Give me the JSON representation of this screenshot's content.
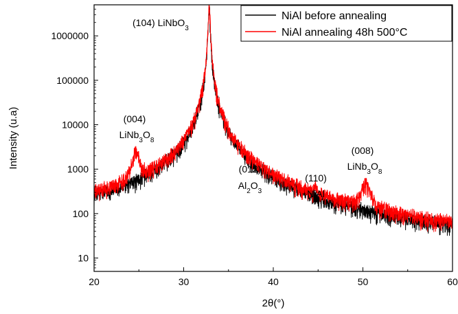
{
  "chart_data": {
    "type": "line",
    "title": "",
    "xlabel": "2θ(°)",
    "ylabel": "Intensity (u.a)",
    "xlim": [
      20,
      60
    ],
    "ylim": [
      5,
      5000000
    ],
    "yscale": "log",
    "grid": false,
    "legend_position": "top-right",
    "x_ticks": [
      20,
      30,
      40,
      50,
      60
    ],
    "x_tick_labels": [
      "20",
      "30",
      "40",
      "50",
      "60"
    ],
    "y_ticks": [
      10,
      100,
      1000,
      10000,
      100000,
      1000000
    ],
    "y_tick_labels": [
      "10",
      "100",
      "1000",
      "10000",
      "100000",
      "1000000"
    ],
    "series": [
      {
        "name": "NiAl before annealing",
        "color": "#000000",
        "baseline": [
          [
            20,
            75
          ],
          [
            24,
            55
          ],
          [
            28,
            50
          ],
          [
            31,
            58
          ],
          [
            32,
            120
          ],
          [
            33,
            1500
          ],
          [
            34,
            80
          ],
          [
            36,
            32
          ],
          [
            40,
            25
          ],
          [
            44,
            15
          ],
          [
            46,
            11
          ],
          [
            50,
            11
          ],
          [
            55,
            10
          ],
          [
            60,
            11
          ]
        ],
        "peaks": [
          {
            "center": 32.85,
            "height": 4000000,
            "width": 0.09
          }
        ]
      },
      {
        "name": "NiAl annealing 48h 500°C",
        "color": "#ff0000",
        "baseline": [
          [
            20,
            75
          ],
          [
            24,
            62
          ],
          [
            28,
            60
          ],
          [
            31,
            75
          ],
          [
            32,
            120
          ],
          [
            33,
            1500
          ],
          [
            34,
            90
          ],
          [
            35,
            45
          ],
          [
            36,
            42
          ],
          [
            39,
            40
          ],
          [
            42,
            38
          ],
          [
            44,
            25
          ],
          [
            46,
            18
          ],
          [
            48,
            17
          ],
          [
            52,
            16
          ],
          [
            56,
            14
          ],
          [
            60,
            14
          ]
        ],
        "peaks": [
          {
            "center": 24.65,
            "height": 2000,
            "width": 0.35
          },
          {
            "center": 32.85,
            "height": 4500000,
            "width": 0.09
          },
          {
            "center": 37.2,
            "height": 65,
            "width": 0.45
          },
          {
            "center": 44.7,
            "height": 130,
            "width": 0.12
          },
          {
            "center": 50.3,
            "height": 330,
            "width": 0.45
          }
        ]
      }
    ],
    "annotations": [
      {
        "lines": [
          "(104) LiNbO3"
        ],
        "x": 29.5,
        "y": 2100000
      },
      {
        "lines": [
          "(004)",
          "LiNb3O8"
        ],
        "x": 24.3,
        "y": 11000
      },
      {
        "lines": [
          "(012)",
          "Al2O3"
        ],
        "x": 37.3,
        "y": 700
      },
      {
        "lines": [
          "(110)",
          "NiAl"
        ],
        "x": 44.6,
        "y": 420
      },
      {
        "lines": [
          "(008)",
          "LiNb3O8"
        ],
        "x": 50.0,
        "y": 1400
      }
    ],
    "annotation_text": {
      "a1": {
        "l1_pre": "(104) LiNbO",
        "l1_sub": "3"
      },
      "a2": {
        "l1": "(004)",
        "l2_pre": "LiNb",
        "l2_sub1": "3",
        "l2_mid": "O",
        "l2_sub2": "8"
      },
      "a3": {
        "l1": "(012)",
        "l2_pre": "Al",
        "l2_sub1": "2",
        "l2_mid": "O",
        "l2_sub2": "3"
      },
      "a4": {
        "l1": "(110)",
        "l2": "NiAl"
      },
      "a5": {
        "l1": "(008)",
        "l2_pre": "LiNb",
        "l2_sub1": "3",
        "l2_mid": "O",
        "l2_sub2": "8"
      }
    }
  }
}
